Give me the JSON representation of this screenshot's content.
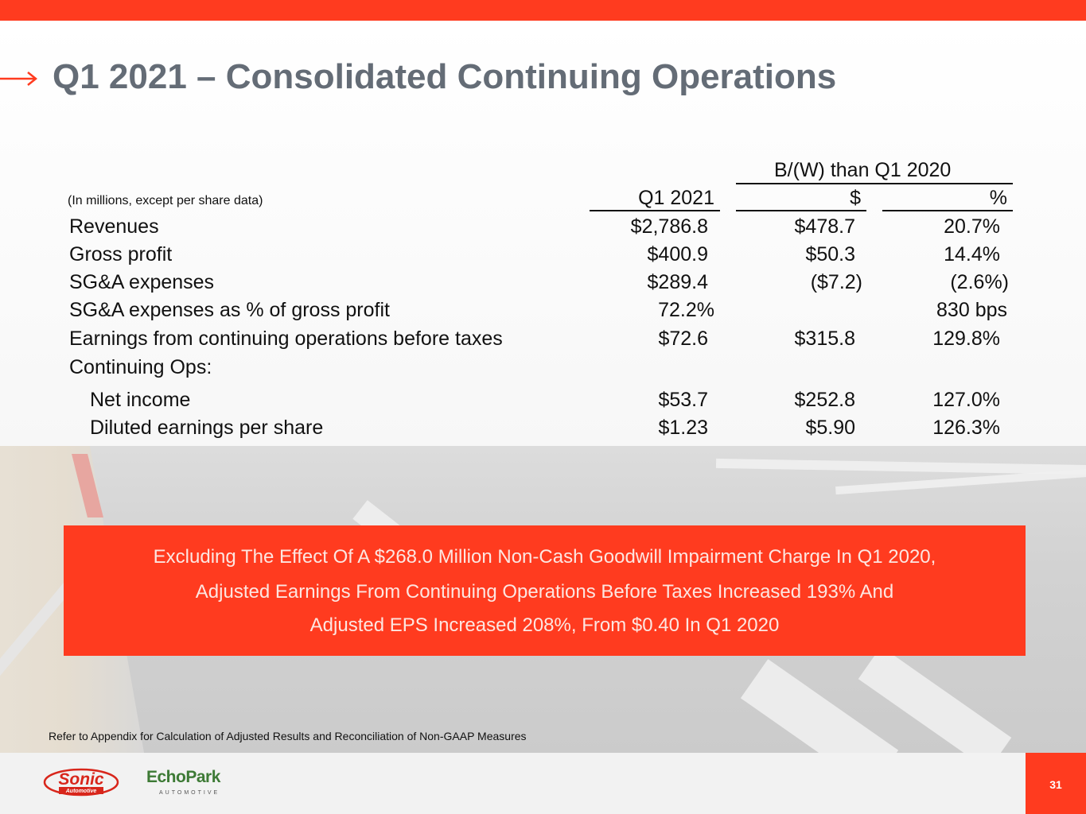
{
  "slide": {
    "title": "Q1 2021 – Consolidated Continuing Operations",
    "page_number": "31",
    "accent_color": "#ff3b1f",
    "title_color": "#646c76"
  },
  "table": {
    "units_note": "(In millions, except per share data)",
    "group_header": "B/(W) than Q1 2020",
    "columns": [
      "Q1 2021",
      "$",
      "%"
    ],
    "rows": [
      {
        "label": "Revenues",
        "q1_2021": "$2,786.8",
        "change_dollar": "$478.7",
        "change_pct": "20.7%"
      },
      {
        "label": "Gross profit",
        "q1_2021": "$400.9",
        "change_dollar": "$50.3",
        "change_pct": "14.4%"
      },
      {
        "label": "SG&A expenses",
        "q1_2021": "$289.4",
        "change_dollar": "($7.2)",
        "change_pct": "(2.6%)"
      },
      {
        "label": "SG&A expenses as % of gross profit",
        "q1_2021": "72.2%",
        "change_dollar": "",
        "change_pct": "830 bps"
      },
      {
        "label": "Earnings from continuing operations before taxes",
        "q1_2021": "$72.6",
        "change_dollar": "$315.8",
        "change_pct": "129.8%"
      },
      {
        "label": "Continuing Ops:",
        "q1_2021": "",
        "change_dollar": "",
        "change_pct": ""
      },
      {
        "label": "Net income",
        "q1_2021": "$53.7",
        "change_dollar": "$252.8",
        "change_pct": "127.0%"
      },
      {
        "label": "Diluted earnings per share",
        "q1_2021": "$1.23",
        "change_dollar": "$5.90",
        "change_pct": "126.3%"
      }
    ]
  },
  "callout": {
    "lines": [
      "Excluding The Effect Of A $268.0 Million Non-Cash Goodwill Impairment Charge In Q1 2020,",
      "Adjusted Earnings From Continuing Operations Before Taxes Increased 193% And",
      "Adjusted EPS Increased 208%, From $0.40 In Q1 2020"
    ]
  },
  "footnote": "Refer to Appendix for Calculation of Adjusted Results and Reconciliation of Non-GAAP Measures",
  "logos": {
    "sonic": "Sonic",
    "sonic_sub": "Automotive",
    "echopark": "EchoPark",
    "echopark_sub": "AUTOMOTIVE"
  }
}
